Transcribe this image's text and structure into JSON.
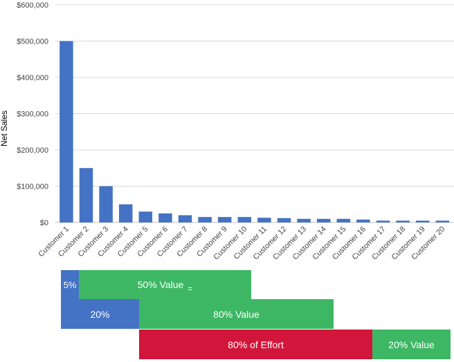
{
  "chart_data": {
    "type": "bar",
    "title": "",
    "xlabel": "",
    "ylabel": "Net Sales",
    "ylim": [
      0,
      600000
    ],
    "yticks": [
      0,
      100000,
      200000,
      300000,
      400000,
      500000,
      600000
    ],
    "ytick_labels": [
      "$0",
      "$100,000",
      "$200,000",
      "$300,000",
      "$400,000",
      "$500,000",
      "$600,000"
    ],
    "grid": true,
    "categories": [
      "Customer 1",
      "Customer 2",
      "Customer 3",
      "Customer 4",
      "Customer 5",
      "Customer 6",
      "Customer 7",
      "Customer 8",
      "Customer 9",
      "Customer 10",
      "Customer 11",
      "Customer 12",
      "Customer 13",
      "Customer 14",
      "Customer 15",
      "Customer 16",
      "Customer 17",
      "Customer 18",
      "Customer 19",
      "Customer 20"
    ],
    "values": [
      500000,
      150000,
      100000,
      50000,
      30000,
      25000,
      20000,
      15000,
      15000,
      15000,
      13000,
      12000,
      10000,
      10000,
      10000,
      8000,
      5000,
      5000,
      5000,
      5000
    ],
    "bar_color": "#4472C4"
  },
  "annotations": {
    "row1": {
      "small_label": "5%",
      "small_label_line1": "5",
      "small_label_line2": "%",
      "big_label": "50% Value",
      "big_suffix": "="
    },
    "row2": {
      "small_label": "20%",
      "big_label": "80% Value"
    },
    "row3": {
      "effort_label": "80% of Effort",
      "value_label": "20% Value"
    }
  },
  "colors": {
    "blue": "#4472C4",
    "green": "#3DB764",
    "red": "#D2163B"
  }
}
